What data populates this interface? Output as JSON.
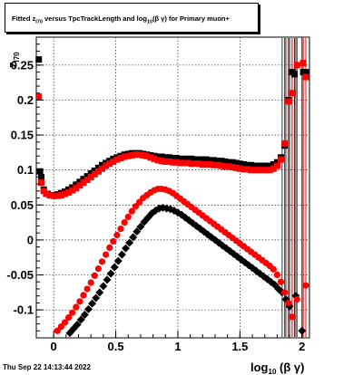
{
  "title": {
    "pre": "Fitted  z",
    "sub1": "I70",
    "mid": " versus TpcTrackLength and log",
    "sub2": "10",
    "post": "(β  γ) for Primary muon+"
  },
  "footer": "Thu Sep 22 14:13:44 2022",
  "chart_data": {
    "type": "scatter",
    "title": "Fitted z_I70 versus TpcTrackLength and log10(β γ) for Primary muon+",
    "xlabel": "log10 (β γ)",
    "ylabel": "z_I70",
    "xlim": [
      -0.14,
      2.06
    ],
    "ylim": [
      -0.14,
      0.29
    ],
    "xticks": [
      0,
      0.5,
      1,
      1.5,
      2
    ],
    "xtick_labels": [
      "0",
      "0.5",
      "1",
      "1.5",
      "2"
    ],
    "yticks": [
      -0.1,
      -0.05,
      0,
      0.05,
      0.1,
      0.15,
      0.2,
      0.25
    ],
    "ytick_labels": [
      "-0.1",
      "-0.05",
      "0",
      "0.05",
      "0.1",
      "0.15",
      "0.2",
      "0.25"
    ],
    "grid": true,
    "colors": {
      "black": "#000000",
      "red": "#ff0000"
    },
    "series": [
      {
        "id": "upper-black",
        "marker": "square",
        "color": "#000000",
        "x": [
          -0.12,
          -0.11,
          -0.1,
          -0.08,
          -0.05,
          -0.02,
          0.0,
          0.03,
          0.06,
          0.09,
          0.12,
          0.15,
          0.18,
          0.21,
          0.24,
          0.27,
          0.3,
          0.33,
          0.36,
          0.39,
          0.42,
          0.45,
          0.48,
          0.51,
          0.54,
          0.57,
          0.6,
          0.63,
          0.66,
          0.69,
          0.72,
          0.75,
          0.78,
          0.81,
          0.84,
          0.87,
          0.9,
          0.93,
          0.96,
          0.99,
          1.02,
          1.05,
          1.08,
          1.11,
          1.14,
          1.17,
          1.2,
          1.23,
          1.26,
          1.29,
          1.32,
          1.35,
          1.38,
          1.41,
          1.44,
          1.47,
          1.5,
          1.53,
          1.56,
          1.59,
          1.62,
          1.65,
          1.68,
          1.71,
          1.74,
          1.77,
          1.8,
          1.83,
          1.86,
          1.89,
          1.92,
          1.94,
          2.01,
          2.03
        ],
        "y": [
          0.258,
          0.098,
          0.09,
          0.072,
          0.066,
          0.064,
          0.064,
          0.065,
          0.067,
          0.069,
          0.072,
          0.075,
          0.079,
          0.083,
          0.087,
          0.091,
          0.095,
          0.099,
          0.103,
          0.107,
          0.11,
          0.113,
          0.116,
          0.118,
          0.12,
          0.122,
          0.123,
          0.124,
          0.124,
          0.124,
          0.123,
          0.122,
          0.121,
          0.12,
          0.119,
          0.119,
          0.118,
          0.118,
          0.117,
          0.117,
          0.116,
          0.116,
          0.116,
          0.116,
          0.115,
          0.115,
          0.115,
          0.115,
          0.114,
          0.114,
          0.113,
          0.113,
          0.112,
          0.111,
          0.111,
          0.11,
          0.109,
          0.108,
          0.107,
          0.107,
          0.106,
          0.106,
          0.106,
          0.106,
          0.106,
          0.108,
          0.111,
          0.118,
          0.135,
          0.2,
          0.24,
          0.237,
          0.24,
          0.24
        ]
      },
      {
        "id": "upper-red",
        "marker": "square",
        "color": "#ff0000",
        "x": [
          -0.12,
          -0.1,
          -0.08,
          -0.06,
          -0.03,
          0.0,
          0.03,
          0.06,
          0.09,
          0.12,
          0.15,
          0.18,
          0.21,
          0.24,
          0.27,
          0.3,
          0.33,
          0.36,
          0.39,
          0.42,
          0.45,
          0.48,
          0.51,
          0.54,
          0.57,
          0.6,
          0.63,
          0.66,
          0.69,
          0.72,
          0.75,
          0.78,
          0.81,
          0.84,
          0.87,
          0.9,
          0.93,
          0.96,
          0.99,
          1.02,
          1.05,
          1.08,
          1.11,
          1.14,
          1.17,
          1.2,
          1.23,
          1.26,
          1.29,
          1.32,
          1.35,
          1.38,
          1.41,
          1.44,
          1.47,
          1.5,
          1.53,
          1.56,
          1.59,
          1.62,
          1.65,
          1.68,
          1.71,
          1.74,
          1.77,
          1.8,
          1.83,
          1.86,
          1.89,
          1.92,
          1.96,
          2.01,
          2.03
        ],
        "y": [
          0.205,
          0.082,
          0.07,
          0.066,
          0.064,
          0.063,
          0.063,
          0.064,
          0.066,
          0.068,
          0.071,
          0.074,
          0.078,
          0.082,
          0.086,
          0.09,
          0.094,
          0.098,
          0.102,
          0.106,
          0.109,
          0.112,
          0.115,
          0.117,
          0.119,
          0.12,
          0.121,
          0.122,
          0.122,
          0.121,
          0.12,
          0.118,
          0.116,
          0.114,
          0.113,
          0.112,
          0.112,
          0.111,
          0.111,
          0.11,
          0.11,
          0.11,
          0.109,
          0.109,
          0.109,
          0.108,
          0.108,
          0.108,
          0.107,
          0.107,
          0.106,
          0.105,
          0.105,
          0.104,
          0.103,
          0.102,
          0.101,
          0.101,
          0.1,
          0.1,
          0.1,
          0.1,
          0.1,
          0.1,
          0.102,
          0.106,
          0.115,
          0.138,
          0.198,
          0.21,
          0.25,
          0.253,
          0.233
        ]
      },
      {
        "id": "lower-black",
        "marker": "diamond",
        "color": "#000000",
        "x": [
          0.13,
          0.16,
          0.19,
          0.22,
          0.25,
          0.28,
          0.31,
          0.34,
          0.37,
          0.4,
          0.43,
          0.46,
          0.49,
          0.52,
          0.55,
          0.58,
          0.61,
          0.64,
          0.67,
          0.7,
          0.73,
          0.76,
          0.79,
          0.82,
          0.85,
          0.88,
          0.91,
          0.94,
          0.97,
          1.0,
          1.03,
          1.06,
          1.09,
          1.12,
          1.15,
          1.18,
          1.21,
          1.24,
          1.27,
          1.3,
          1.33,
          1.36,
          1.39,
          1.42,
          1.45,
          1.48,
          1.51,
          1.54,
          1.57,
          1.6,
          1.63,
          1.66,
          1.69,
          1.72,
          1.75,
          1.78,
          1.81,
          1.84,
          1.87,
          1.9,
          1.95,
          2.0
        ],
        "y": [
          -0.133,
          -0.127,
          -0.121,
          -0.114,
          -0.107,
          -0.099,
          -0.091,
          -0.083,
          -0.075,
          -0.066,
          -0.057,
          -0.048,
          -0.039,
          -0.03,
          -0.021,
          -0.012,
          -0.004,
          0.004,
          0.012,
          0.019,
          0.026,
          0.032,
          0.038,
          0.042,
          0.045,
          0.046,
          0.045,
          0.044,
          0.042,
          0.039,
          0.036,
          0.032,
          0.028,
          0.024,
          0.02,
          0.016,
          0.012,
          0.008,
          0.004,
          0.0,
          -0.004,
          -0.008,
          -0.012,
          -0.016,
          -0.02,
          -0.024,
          -0.028,
          -0.032,
          -0.036,
          -0.04,
          -0.044,
          -0.048,
          -0.052,
          -0.056,
          -0.06,
          -0.064,
          -0.07,
          -0.075,
          -0.085,
          -0.095,
          -0.08,
          -0.13
        ]
      },
      {
        "id": "lower-red",
        "marker": "circle",
        "color": "#ff0000",
        "x": [
          0.03,
          0.06,
          0.09,
          0.12,
          0.15,
          0.18,
          0.21,
          0.24,
          0.27,
          0.3,
          0.33,
          0.36,
          0.39,
          0.42,
          0.45,
          0.48,
          0.51,
          0.54,
          0.57,
          0.6,
          0.63,
          0.66,
          0.69,
          0.72,
          0.75,
          0.78,
          0.81,
          0.84,
          0.87,
          0.9,
          0.93,
          0.96,
          0.99,
          1.02,
          1.05,
          1.08,
          1.11,
          1.14,
          1.17,
          1.2,
          1.23,
          1.26,
          1.29,
          1.32,
          1.35,
          1.38,
          1.41,
          1.44,
          1.47,
          1.5,
          1.53,
          1.56,
          1.59,
          1.62,
          1.65,
          1.68,
          1.71,
          1.74,
          1.77,
          1.8,
          1.83,
          1.86,
          1.89,
          1.92,
          1.96,
          2.03
        ],
        "y": [
          -0.13,
          -0.124,
          -0.118,
          -0.111,
          -0.104,
          -0.096,
          -0.088,
          -0.079,
          -0.07,
          -0.061,
          -0.051,
          -0.041,
          -0.031,
          -0.021,
          -0.011,
          -0.002,
          0.007,
          0.016,
          0.025,
          0.033,
          0.041,
          0.048,
          0.054,
          0.06,
          0.064,
          0.068,
          0.071,
          0.073,
          0.073,
          0.072,
          0.07,
          0.067,
          0.063,
          0.059,
          0.055,
          0.051,
          0.047,
          0.043,
          0.039,
          0.035,
          0.031,
          0.027,
          0.023,
          0.019,
          0.015,
          0.011,
          0.007,
          0.003,
          -0.001,
          -0.005,
          -0.009,
          -0.013,
          -0.017,
          -0.021,
          -0.025,
          -0.029,
          -0.033,
          -0.037,
          -0.042,
          -0.05,
          -0.06,
          -0.075,
          -0.09,
          -0.11,
          -0.085,
          -0.065
        ]
      }
    ]
  }
}
